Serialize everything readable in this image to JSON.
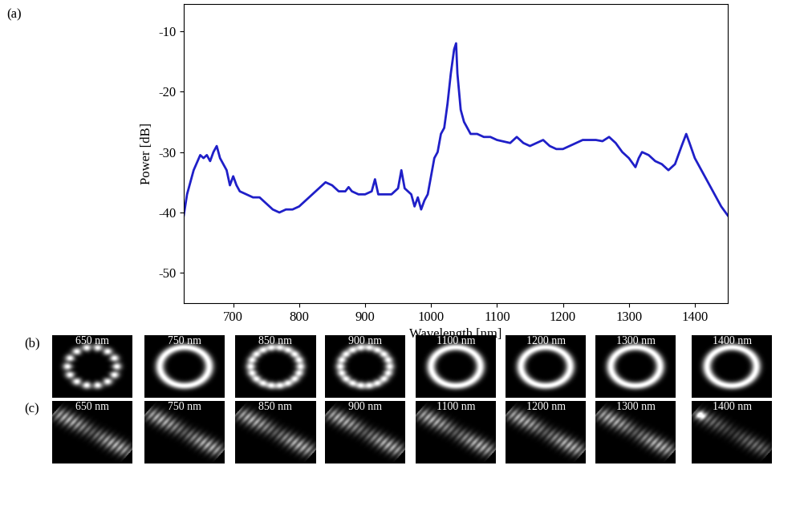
{
  "chart_data": {
    "type": "line",
    "panel_label": "(a)",
    "x_label": "Wavelength [nm]",
    "y_label": "Power [dB]",
    "x": [
      625,
      630,
      640,
      650,
      655,
      660,
      665,
      670,
      675,
      680,
      685,
      690,
      695,
      700,
      705,
      710,
      720,
      730,
      740,
      750,
      760,
      770,
      780,
      790,
      800,
      810,
      820,
      830,
      840,
      850,
      860,
      870,
      875,
      880,
      890,
      900,
      910,
      915,
      920,
      930,
      940,
      950,
      955,
      960,
      970,
      975,
      980,
      985,
      990,
      995,
      1000,
      1005,
      1010,
      1015,
      1020,
      1025,
      1030,
      1035,
      1038,
      1040,
      1045,
      1050,
      1055,
      1060,
      1070,
      1080,
      1090,
      1100,
      1120,
      1130,
      1140,
      1150,
      1160,
      1170,
      1180,
      1190,
      1200,
      1210,
      1220,
      1230,
      1250,
      1260,
      1270,
      1280,
      1290,
      1300,
      1310,
      1315,
      1320,
      1330,
      1340,
      1350,
      1360,
      1370,
      1380,
      1387,
      1392,
      1400,
      1410,
      1420,
      1430,
      1440,
      1450
    ],
    "values": [
      -40.5,
      -37,
      -33,
      -30.5,
      -31,
      -30.5,
      -31.5,
      -30,
      -29,
      -31,
      -32,
      -33,
      -35.5,
      -34,
      -35.5,
      -36.5,
      -37,
      -37.5,
      -37.5,
      -38.5,
      -39.5,
      -40,
      -39.5,
      -39.5,
      -39,
      -38,
      -37,
      -36,
      -35,
      -35.5,
      -36.5,
      -36.5,
      -35.8,
      -36.5,
      -37,
      -37,
      -36.5,
      -34.5,
      -37,
      -37,
      -37,
      -36,
      -33,
      -36,
      -37,
      -39,
      -37.5,
      -39.5,
      -38,
      -37,
      -34,
      -31,
      -30,
      -27,
      -26,
      -22,
      -17,
      -13,
      -12,
      -17,
      -23,
      -25,
      -26,
      -27,
      -27,
      -27.5,
      -27.5,
      -28,
      -28.5,
      -27.5,
      -28.5,
      -29,
      -28.5,
      -28,
      -29,
      -29.5,
      -29.5,
      -29,
      -28.5,
      -28,
      -28,
      -28.2,
      -27.5,
      -28.5,
      -30,
      -31,
      -32.5,
      -31,
      -30,
      -30.5,
      -31.5,
      -32,
      -33,
      -32,
      -29,
      -27,
      -28.5,
      -31,
      -33,
      -35,
      -37,
      -39,
      -40.5
    ],
    "color": "#1f1fc8",
    "xlim": [
      625,
      1450
    ],
    "xticks": [
      700,
      800,
      900,
      1000,
      1100,
      1200,
      1300,
      1400
    ],
    "ylim": [
      -55,
      -5.5
    ],
    "yticks": [
      -10,
      -20,
      -30,
      -40,
      -50
    ],
    "grid": false
  },
  "images": {
    "b": {
      "panel_label": "(b)",
      "labels": [
        "650 nm",
        "750 nm",
        "850 nm",
        "900 nm",
        "1100 nm",
        "1200 nm",
        "1300 nm",
        "1400 nm"
      ]
    },
    "c": {
      "panel_label": "(c)",
      "labels": [
        "650 nm",
        "750 nm",
        "850 nm",
        "900 nm",
        "1100 nm",
        "1200 nm",
        "1300 nm",
        "1400 nm"
      ]
    }
  }
}
